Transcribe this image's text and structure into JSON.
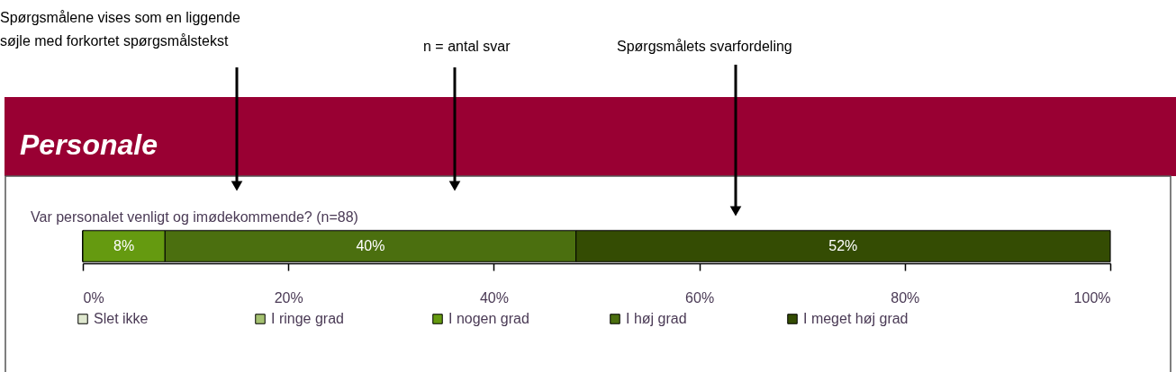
{
  "chart_data": {
    "type": "bar",
    "orientation": "horizontal",
    "stacked": true,
    "title": "Personale",
    "categories": [
      "Var personalet venligt og imødekommende? (n=88)"
    ],
    "series": [
      {
        "name": "Slet ikke",
        "color": "#dfe8cf",
        "values": [
          0
        ],
        "value_labels": [
          null
        ]
      },
      {
        "name": "I ringe grad",
        "color": "#a4c170",
        "values": [
          0
        ],
        "value_labels": [
          null
        ]
      },
      {
        "name": "I nogen grad",
        "color": "#659a10",
        "values": [
          8
        ],
        "value_labels": [
          "8%"
        ]
      },
      {
        "name": "I høj grad",
        "color": "#4b6f0f",
        "values": [
          40
        ],
        "value_labels": [
          "40%"
        ]
      },
      {
        "name": "I meget høj grad",
        "color": "#344c03",
        "values": [
          52
        ],
        "value_labels": [
          "52%"
        ]
      }
    ],
    "xlim": [
      0,
      100
    ],
    "xticks": [
      {
        "value": 0,
        "label": "0%"
      },
      {
        "value": 20,
        "label": "20%"
      },
      {
        "value": 40,
        "label": "40%"
      },
      {
        "value": 60,
        "label": "60%"
      },
      {
        "value": 80,
        "label": "80%"
      },
      {
        "value": 100,
        "label": "100%"
      }
    ],
    "grid": false,
    "legend": "bottom",
    "annotations": [
      "Spørgsmålene vises som en liggende\nsøjle med forkortet spørgsmålstekst",
      "n = antal svar",
      "Spørgsmålets svarfordeling"
    ]
  }
}
